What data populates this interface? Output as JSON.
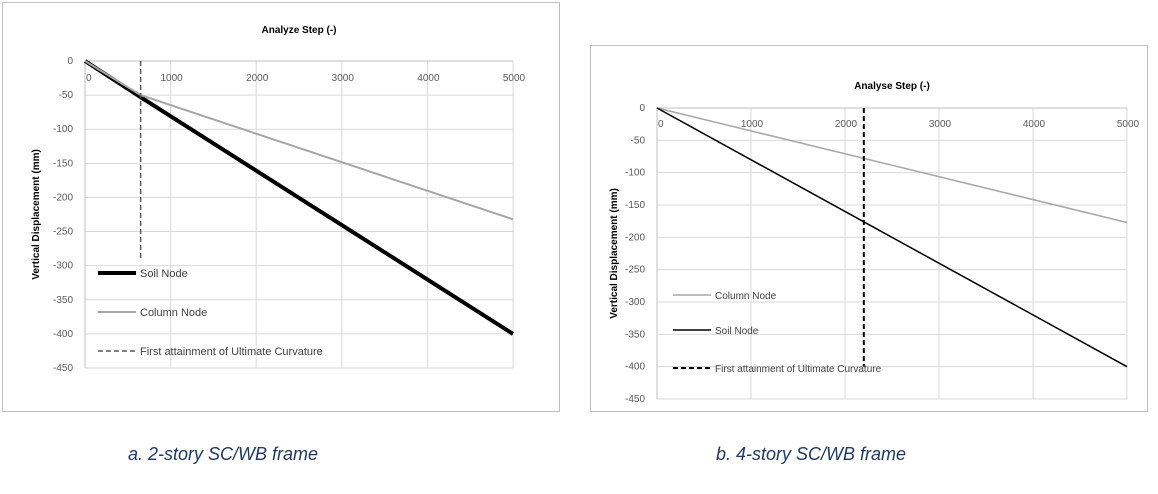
{
  "chart_data": [
    {
      "type": "line",
      "xlabel": "Analyze Step (-)",
      "ylabel": "Vertical Displacement (mm)",
      "xlim": [
        0,
        5000
      ],
      "ylim": [
        -450,
        0
      ],
      "xticks": [
        0,
        1000,
        2000,
        3000,
        4000,
        5000
      ],
      "yticks": [
        0,
        -50,
        -100,
        -150,
        -200,
        -250,
        -300,
        -350,
        -400,
        -450
      ],
      "grid": true,
      "legend_position": "bottom-left",
      "series": [
        {
          "name": "Soil Node",
          "color": "#000000",
          "style": "solid-thick",
          "x": [
            0,
            650,
            5000
          ],
          "y": [
            0,
            -53,
            -400
          ]
        },
        {
          "name": "Column Node",
          "color": "#a6a6a6",
          "style": "solid",
          "x": [
            0,
            650,
            5000
          ],
          "y": [
            0,
            -50,
            -232
          ]
        },
        {
          "name": "First attainment of Ultimate Curvature",
          "color": "#595959",
          "style": "dashed",
          "x": [
            650,
            650
          ],
          "y": [
            0,
            -290
          ]
        }
      ]
    },
    {
      "type": "line",
      "xlabel": "Analyse Step (-)",
      "ylabel": "Vertical Displacement (mm)",
      "xlim": [
        0,
        5000
      ],
      "ylim": [
        -450,
        0
      ],
      "xticks": [
        0,
        1000,
        2000,
        3000,
        4000,
        5000
      ],
      "yticks": [
        0,
        -50,
        -100,
        -150,
        -200,
        -250,
        -300,
        -350,
        -400,
        -450
      ],
      "grid": true,
      "legend_position": "bottom-left",
      "series": [
        {
          "name": "Column Node",
          "color": "#a6a6a6",
          "style": "solid",
          "x": [
            0,
            5000
          ],
          "y": [
            0,
            -177
          ]
        },
        {
          "name": "Soil Node",
          "color": "#000000",
          "style": "solid",
          "x": [
            0,
            5000
          ],
          "y": [
            0,
            -400
          ]
        },
        {
          "name": "First attainment of Ultimate Curvature",
          "color": "#000000",
          "style": "dashed",
          "x": [
            2200,
            2200
          ],
          "y": [
            0,
            -400
          ]
        }
      ]
    }
  ],
  "captions": {
    "a": "a. 2-story SC/WB frame",
    "b": "b. 4-story SC/WB frame"
  }
}
